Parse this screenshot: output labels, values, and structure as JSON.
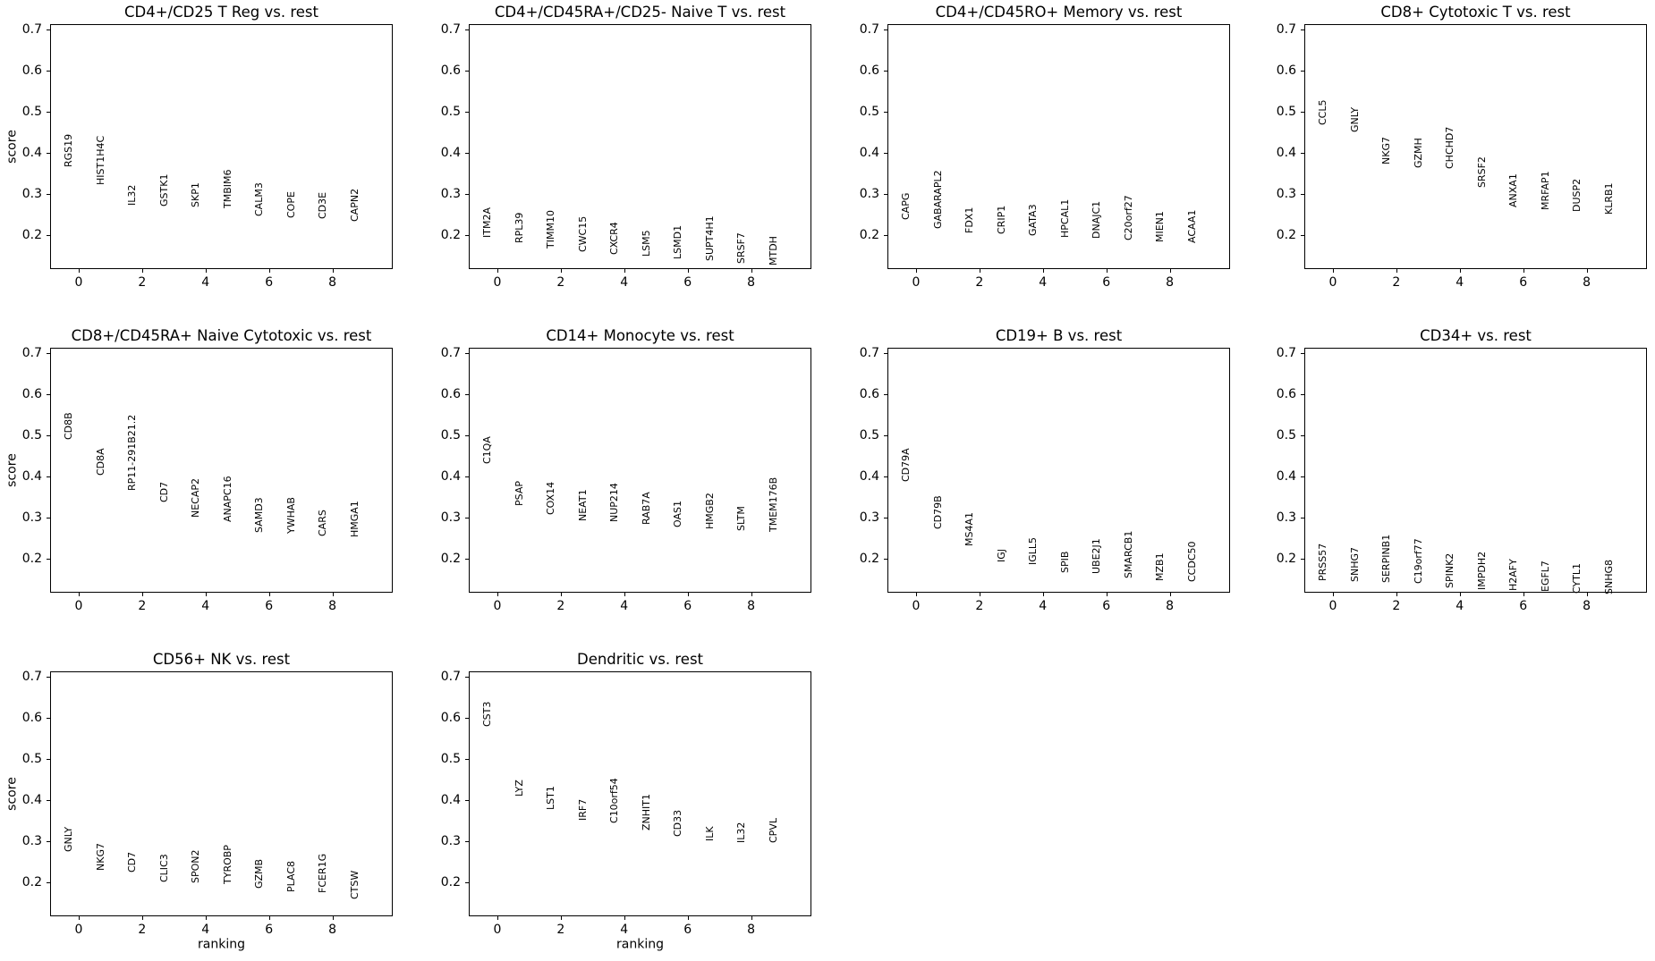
{
  "figure": {
    "background": "#ffffff",
    "text_color": "#000000"
  },
  "chart_data": {
    "type": "scatter",
    "title": "",
    "xlabel": "ranking",
    "ylabel": "score",
    "xticks": [
      0,
      2,
      4,
      6,
      8
    ],
    "yticks": [
      0.2,
      0.3,
      0.4,
      0.5,
      0.6,
      0.7
    ],
    "xlim": [
      -0.9,
      9.9
    ],
    "ylim": [
      0.117,
      0.713
    ],
    "grid": false,
    "legend": "none",
    "panels": [
      {
        "title": "CD4+/CD25 T Reg vs. rest",
        "genes": [
          {
            "name": "RGS19",
            "score": 0.365
          },
          {
            "name": "HIST1H4C",
            "score": 0.322
          },
          {
            "name": "IL32",
            "score": 0.272
          },
          {
            "name": "GSTK1",
            "score": 0.27
          },
          {
            "name": "SKP1",
            "score": 0.268
          },
          {
            "name": "TMBIM6",
            "score": 0.265
          },
          {
            "name": "CALM3",
            "score": 0.246
          },
          {
            "name": "COPE",
            "score": 0.241
          },
          {
            "name": "CD3E",
            "score": 0.239
          },
          {
            "name": "CAPN2",
            "score": 0.232
          }
        ]
      },
      {
        "title": "CD4+/CD45RA+/CD25- Naive T vs. rest",
        "genes": [
          {
            "name": "ITM2A",
            "score": 0.193
          },
          {
            "name": "RPL39",
            "score": 0.18
          },
          {
            "name": "TIMM10",
            "score": 0.168
          },
          {
            "name": "CWC15",
            "score": 0.158
          },
          {
            "name": "CXCR4",
            "score": 0.151
          },
          {
            "name": "LSM5",
            "score": 0.147
          },
          {
            "name": "LSMD1",
            "score": 0.14
          },
          {
            "name": "SUPT4H1",
            "score": 0.136
          },
          {
            "name": "SRSF7",
            "score": 0.13
          },
          {
            "name": "MTDH",
            "score": 0.125
          }
        ]
      },
      {
        "title": "CD4+/CD45RO+ Memory vs. rest",
        "genes": [
          {
            "name": "CAPG",
            "score": 0.237
          },
          {
            "name": "GABARAPL2",
            "score": 0.215
          },
          {
            "name": "FDX1",
            "score": 0.203
          },
          {
            "name": "CRIP1",
            "score": 0.201
          },
          {
            "name": "GATA3",
            "score": 0.198
          },
          {
            "name": "HPCAL1",
            "score": 0.193
          },
          {
            "name": "DNAJC1",
            "score": 0.191
          },
          {
            "name": "C20orf27",
            "score": 0.187
          },
          {
            "name": "MIEN1",
            "score": 0.183
          },
          {
            "name": "ACAA1",
            "score": 0.18
          }
        ]
      },
      {
        "title": "CD8+ Cytotoxic T vs. rest",
        "genes": [
          {
            "name": "CCL5",
            "score": 0.467
          },
          {
            "name": "GNLY",
            "score": 0.45
          },
          {
            "name": "NKG7",
            "score": 0.372
          },
          {
            "name": "GZMH",
            "score": 0.362
          },
          {
            "name": "CHCHD7",
            "score": 0.36
          },
          {
            "name": "SRSF2",
            "score": 0.315
          },
          {
            "name": "ANXA1",
            "score": 0.268
          },
          {
            "name": "MRFAP1",
            "score": 0.261
          },
          {
            "name": "DUSP2",
            "score": 0.257
          },
          {
            "name": "KLRB1",
            "score": 0.25
          }
        ]
      },
      {
        "title": "CD8+/CD45RA+ Naive Cytotoxic vs. rest",
        "genes": [
          {
            "name": "CD8B",
            "score": 0.489
          },
          {
            "name": "CD8A",
            "score": 0.402
          },
          {
            "name": "RP11-291B21.2",
            "score": 0.365
          },
          {
            "name": "CD7",
            "score": 0.337
          },
          {
            "name": "NECAP2",
            "score": 0.3
          },
          {
            "name": "ANAPC16",
            "score": 0.289
          },
          {
            "name": "SAMD3",
            "score": 0.263
          },
          {
            "name": "YWHAB",
            "score": 0.261
          },
          {
            "name": "CARS",
            "score": 0.253
          },
          {
            "name": "HMGA1",
            "score": 0.252
          }
        ]
      },
      {
        "title": "CD14+ Monocyte vs. rest",
        "genes": [
          {
            "name": "C1QA",
            "score": 0.43
          },
          {
            "name": "PSAP",
            "score": 0.329
          },
          {
            "name": "COX14",
            "score": 0.307
          },
          {
            "name": "NEAT1",
            "score": 0.291
          },
          {
            "name": "NUP214",
            "score": 0.289
          },
          {
            "name": "RAB7A",
            "score": 0.282
          },
          {
            "name": "OAS1",
            "score": 0.276
          },
          {
            "name": "HMGB2",
            "score": 0.272
          },
          {
            "name": "SLTM",
            "score": 0.268
          },
          {
            "name": "TMEM176B",
            "score": 0.265
          }
        ]
      },
      {
        "title": "CD19+ B vs. rest",
        "genes": [
          {
            "name": "CD79A",
            "score": 0.387
          },
          {
            "name": "CD79B",
            "score": 0.272
          },
          {
            "name": "MS4A1",
            "score": 0.231
          },
          {
            "name": "IGJ",
            "score": 0.191
          },
          {
            "name": "IGLL5",
            "score": 0.185
          },
          {
            "name": "SPIB",
            "score": 0.165
          },
          {
            "name": "UBE2J1",
            "score": 0.162
          },
          {
            "name": "SMARCB1",
            "score": 0.152
          },
          {
            "name": "MZB1",
            "score": 0.145
          },
          {
            "name": "CCDC50",
            "score": 0.143
          }
        ]
      },
      {
        "title": "CD34+ vs. rest",
        "genes": [
          {
            "name": "PRSS57",
            "score": 0.146
          },
          {
            "name": "SNHG7",
            "score": 0.143
          },
          {
            "name": "SERPINB1",
            "score": 0.14
          },
          {
            "name": "C19orf77",
            "score": 0.138
          },
          {
            "name": "SPINK2",
            "score": 0.128
          },
          {
            "name": "IMPDH2",
            "score": 0.124
          },
          {
            "name": "H2AFY",
            "score": 0.122
          },
          {
            "name": "EGFL7",
            "score": 0.12
          },
          {
            "name": "CYTL1",
            "score": 0.114
          },
          {
            "name": "SNHG8",
            "score": 0.112
          }
        ]
      },
      {
        "title": "CD56+ NK vs. rest",
        "genes": [
          {
            "name": "GNLY",
            "score": 0.274
          },
          {
            "name": "NKG7",
            "score": 0.228
          },
          {
            "name": "CD7",
            "score": 0.224
          },
          {
            "name": "CLIC3",
            "score": 0.199
          },
          {
            "name": "SPON2",
            "score": 0.198
          },
          {
            "name": "TYROBP",
            "score": 0.196
          },
          {
            "name": "GZMB",
            "score": 0.185
          },
          {
            "name": "PLAC8",
            "score": 0.175
          },
          {
            "name": "FCER1G",
            "score": 0.174
          },
          {
            "name": "CTSW",
            "score": 0.159
          }
        ]
      },
      {
        "title": "Dendritic vs. rest",
        "genes": [
          {
            "name": "CST3",
            "score": 0.578
          },
          {
            "name": "LYZ",
            "score": 0.409
          },
          {
            "name": "LST1",
            "score": 0.376
          },
          {
            "name": "IRF7",
            "score": 0.35
          },
          {
            "name": "C10orf54",
            "score": 0.343
          },
          {
            "name": "ZNHIT1",
            "score": 0.326
          },
          {
            "name": "CD33",
            "score": 0.311
          },
          {
            "name": "ILK",
            "score": 0.3
          },
          {
            "name": "IL32",
            "score": 0.296
          },
          {
            "name": "CPVL",
            "score": 0.295
          }
        ]
      }
    ]
  }
}
